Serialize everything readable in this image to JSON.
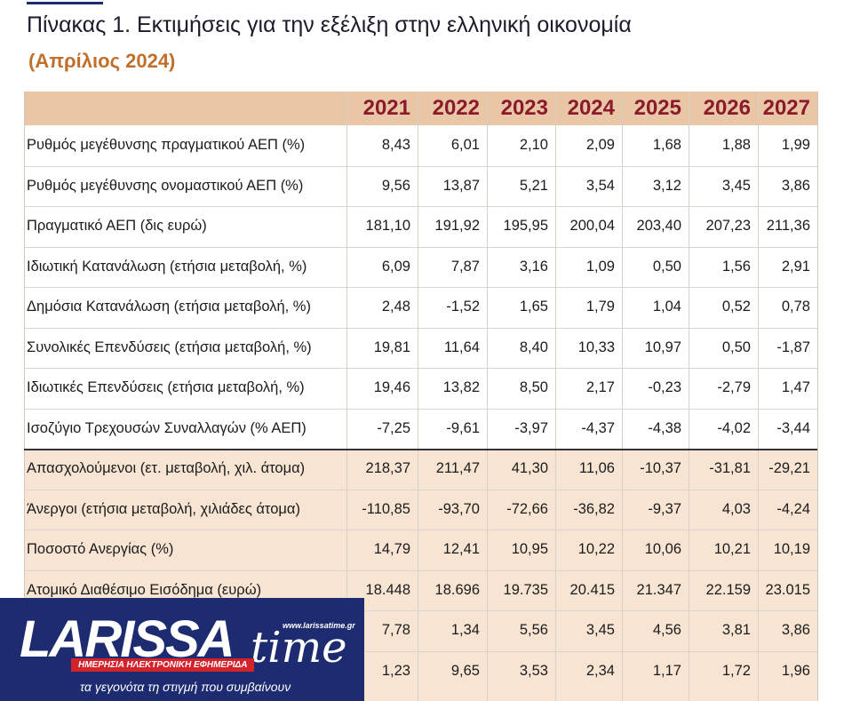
{
  "header": {
    "title": "Πίνακας 1. Εκτιμήσεις για την εξέλιξη στην ελληνική οικονομία",
    "subtitle": "(Απρίλιος 2024)"
  },
  "table": {
    "columns": [
      "2021",
      "2022",
      "2023",
      "2024",
      "2025",
      "2026",
      "2027"
    ],
    "rows": [
      {
        "label": "Ρυθμός μεγέθυνσης πραγματικού ΑΕΠ  (%)",
        "values": [
          "8,43",
          "6,01",
          "2,10",
          "2,09",
          "1,68",
          "1,88",
          "1,99"
        ]
      },
      {
        "label": "Ρυθμός μεγέθυνσης ονομαστικού ΑΕΠ  (%)",
        "values": [
          "9,56",
          "13,87",
          "5,21",
          "3,54",
          "3,12",
          "3,45",
          "3,86"
        ]
      },
      {
        "label": "Πραγματικό ΑΕΠ (δις ευρώ)",
        "values": [
          "181,10",
          "191,92",
          "195,95",
          "200,04",
          "203,40",
          "207,23",
          "211,36"
        ]
      },
      {
        "label": "Ιδιωτική Κατανάλωση (ετήσια μεταβολή, %)",
        "values": [
          "6,09",
          "7,87",
          "3,16",
          "1,09",
          "0,50",
          "1,56",
          "2,91"
        ]
      },
      {
        "label": "Δημόσια Κατανάλωση (ετήσια μεταβολή, %)",
        "values": [
          "2,48",
          "-1,52",
          "1,65",
          "1,79",
          "1,04",
          "0,52",
          "0,78"
        ]
      },
      {
        "label": "Συνολικές Επενδύσεις (ετήσια μεταβολή, %)",
        "values": [
          "19,81",
          "11,64",
          "8,40",
          "10,33",
          "10,97",
          "0,50",
          "-1,87"
        ]
      },
      {
        "label": "Ιδιωτικές Επενδύσεις (ετήσια μεταβολή, %)",
        "values": [
          "19,46",
          "13,82",
          "8,50",
          "2,17",
          "-0,23",
          "-2,79",
          "1,47"
        ]
      },
      {
        "label": "Ισοζύγιο Τρεχουσών Συναλλαγών (% ΑΕΠ)",
        "values": [
          "-7,25",
          "-9,61",
          "-3,97",
          "-4,37",
          "-4,38",
          "-4,02",
          "-3,44"
        ]
      },
      {
        "label": "Απασχολούμενοι (ετ. μεταβολή, χιλ. άτομα)",
        "values": [
          "218,37",
          "211,47",
          "41,30",
          "11,06",
          "-10,37",
          "-31,81",
          "-29,21"
        ]
      },
      {
        "label": "Άνεργοι (ετήσια μεταβολή, χιλιάδες άτομα)",
        "values": [
          "-110,85",
          "-93,70",
          "-72,66",
          "-36,82",
          "-9,37",
          "4,03",
          "-4,24"
        ]
      },
      {
        "label": "Ποσοστό Ανεργίας (%)",
        "values": [
          "14,79",
          "12,41",
          "10,95",
          "10,22",
          "10,06",
          "10,21",
          "10,19"
        ]
      },
      {
        "label": "Ατομικό Διαθέσιμο Εισόδημα (ευρώ)",
        "values": [
          "18.448",
          "18.696",
          "19.735",
          "20.415",
          "21.347",
          "22.159",
          "23.015"
        ]
      },
      {
        "label": null,
        "values": [
          "7,78",
          "1,34",
          "5,56",
          "3,45",
          "4,56",
          "3,81",
          "3,86"
        ]
      },
      {
        "label": null,
        "values": [
          "1,23",
          "9,65",
          "3,53",
          "2,34",
          "1,17",
          "1,72",
          "1,96"
        ]
      }
    ]
  },
  "logo": {
    "brand": "LARISSA",
    "brand_script": "time",
    "url": "www.larissatime.gr",
    "banner": "ΗΜΕΡΗΣΙΑ ΗΛΕΚΤΡΟΝΙΚΗ ΕΦΗΜΕΡΙΔΑ",
    "tagline": "τα γεγονότα τη στιγμή που συμβαίνουν"
  }
}
